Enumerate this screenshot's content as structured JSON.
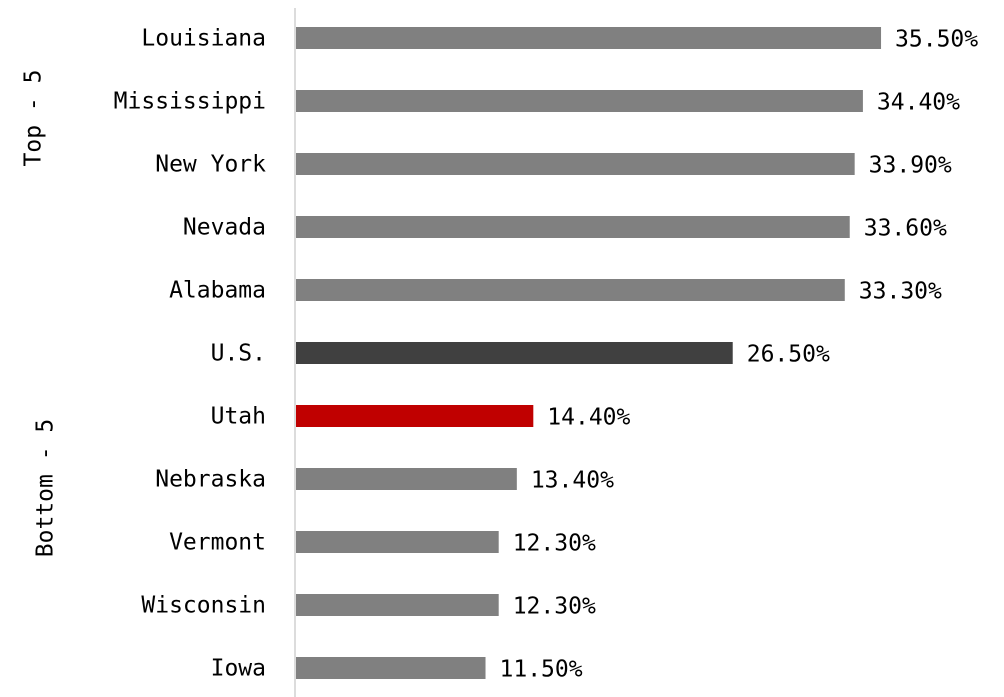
{
  "chart_data": {
    "type": "bar",
    "orientation": "horizontal",
    "categories": [
      "Louisiana",
      "Mississippi",
      "New York",
      "Nevada",
      "Alabama",
      "U.S.",
      "Utah",
      "Nebraska",
      "Vermont",
      "Wisconsin",
      "Iowa"
    ],
    "values": [
      35.5,
      34.4,
      33.9,
      33.6,
      33.3,
      26.5,
      14.4,
      13.4,
      12.3,
      12.3,
      11.5
    ],
    "value_labels": [
      "35.50%",
      "34.40%",
      "33.90%",
      "33.60%",
      "33.30%",
      "26.50%",
      "14.40%",
      "13.40%",
      "12.30%",
      "12.30%",
      "11.50%"
    ],
    "colors": [
      "#808080",
      "#808080",
      "#808080",
      "#808080",
      "#808080",
      "#404040",
      "#c00000",
      "#808080",
      "#808080",
      "#808080",
      "#808080"
    ],
    "group_labels": [
      "Top - 5",
      "Bottom - 5"
    ]
  }
}
